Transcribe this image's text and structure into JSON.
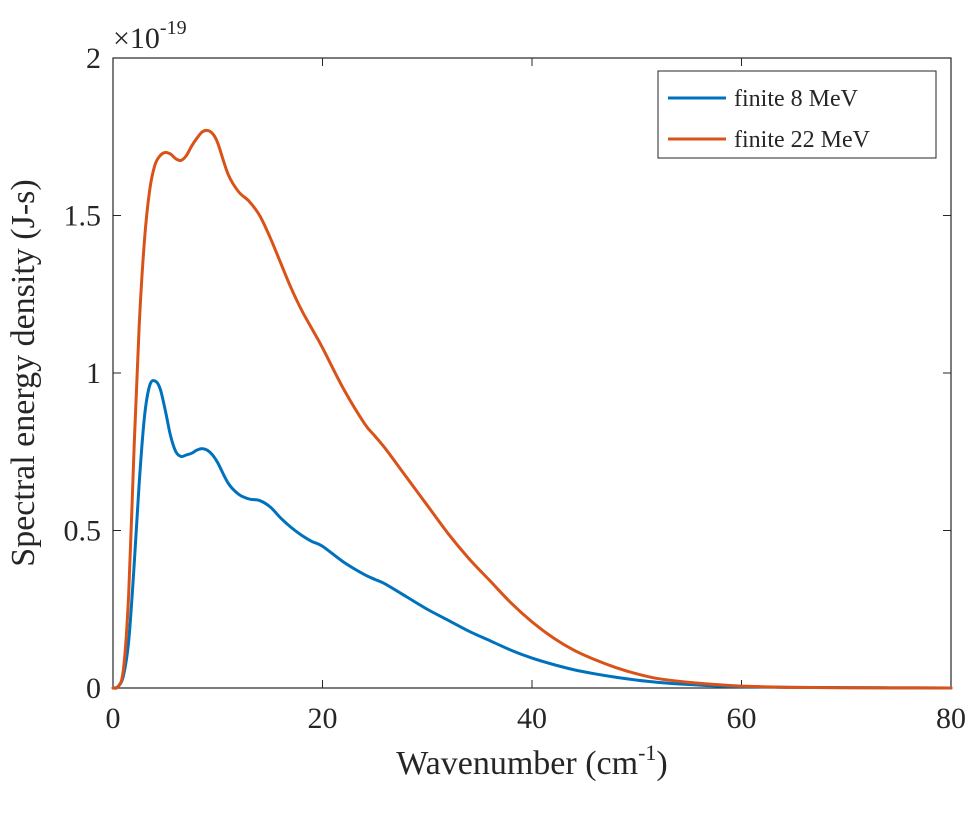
{
  "chart_data": {
    "type": "line",
    "title": "",
    "xlabel": "Wavenumber (cm",
    "xlabel_superscript": "-1",
    "xlabel_suffix": ")",
    "ylabel": "Spectral energy density (J-s)",
    "y_multiplier_prefix": "×10",
    "y_multiplier_exponent": "-19",
    "xlim": [
      0,
      80
    ],
    "ylim": [
      0,
      2
    ],
    "xticks": [
      0,
      20,
      40,
      60,
      80
    ],
    "xtick_labels": [
      "0",
      "20",
      "40",
      "60",
      "80"
    ],
    "yticks": [
      0,
      0.5,
      1,
      1.5,
      2
    ],
    "ytick_labels": [
      "0",
      "0.5",
      "1",
      "1.5",
      "2"
    ],
    "grid": false,
    "legend_position": "top-right",
    "series": [
      {
        "name": "finite 8 MeV",
        "color": "#0072BD",
        "x": [
          0,
          0.5,
          1,
          1.5,
          2,
          2.5,
          3,
          3.5,
          4,
          4.5,
          5,
          5.5,
          6,
          6.5,
          7,
          7.5,
          8,
          8.5,
          9,
          9.5,
          10,
          11,
          12,
          13,
          14,
          15,
          16,
          17,
          18,
          19,
          20,
          22,
          24,
          25,
          26,
          28,
          30,
          32,
          34,
          36,
          38,
          40,
          42,
          44,
          46,
          48,
          50,
          52,
          55,
          58,
          60,
          65,
          70,
          75,
          80
        ],
        "y": [
          0,
          0.005,
          0.04,
          0.15,
          0.38,
          0.65,
          0.86,
          0.96,
          0.975,
          0.95,
          0.88,
          0.8,
          0.75,
          0.735,
          0.74,
          0.745,
          0.755,
          0.76,
          0.755,
          0.74,
          0.715,
          0.65,
          0.615,
          0.6,
          0.595,
          0.575,
          0.54,
          0.51,
          0.485,
          0.465,
          0.45,
          0.4,
          0.36,
          0.345,
          0.33,
          0.29,
          0.25,
          0.215,
          0.18,
          0.15,
          0.12,
          0.095,
          0.075,
          0.058,
          0.045,
          0.034,
          0.025,
          0.018,
          0.011,
          0.006,
          0.004,
          0.002,
          0.001,
          0.0005,
          0.0002
        ]
      },
      {
        "name": "finite 22 MeV",
        "color": "#D95319",
        "x": [
          0,
          0.5,
          1,
          1.5,
          2,
          2.5,
          3,
          3.5,
          4,
          4.5,
          5,
          5.5,
          6,
          6.5,
          7,
          7.5,
          8,
          8.5,
          9,
          9.5,
          10,
          11,
          12,
          13,
          14,
          15,
          16,
          17,
          18,
          19,
          20,
          22,
          24,
          25,
          26,
          28,
          30,
          32,
          34,
          36,
          38,
          40,
          42,
          44,
          46,
          48,
          50,
          52,
          55,
          58,
          60,
          62,
          65,
          70,
          75,
          80
        ],
        "y": [
          0,
          0.005,
          0.06,
          0.3,
          0.75,
          1.15,
          1.42,
          1.58,
          1.66,
          1.69,
          1.7,
          1.695,
          1.68,
          1.675,
          1.69,
          1.72,
          1.745,
          1.765,
          1.77,
          1.76,
          1.73,
          1.63,
          1.575,
          1.545,
          1.5,
          1.43,
          1.35,
          1.27,
          1.2,
          1.14,
          1.08,
          0.95,
          0.84,
          0.8,
          0.76,
          0.67,
          0.58,
          0.49,
          0.41,
          0.34,
          0.27,
          0.21,
          0.16,
          0.12,
          0.09,
          0.065,
          0.045,
          0.03,
          0.018,
          0.01,
          0.006,
          0.004,
          0.002,
          0.0008,
          0.0003,
          0.0001
        ]
      }
    ]
  }
}
